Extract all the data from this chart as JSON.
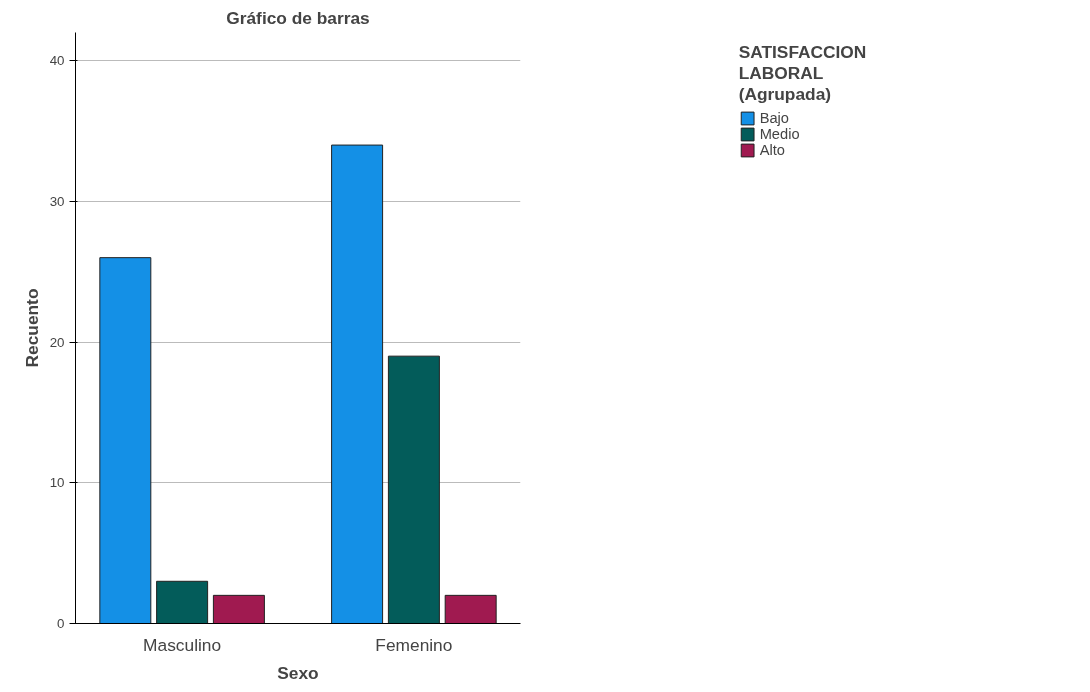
{
  "chart_data": {
    "type": "bar",
    "title": "Gráfico de barras",
    "xlabel": "Sexo",
    "ylabel": "Recuento",
    "legend_title": "SATISFACCION LABORAL (Agrupada)",
    "categories": [
      "Masculino",
      "Femenino"
    ],
    "series": [
      {
        "name": "Bajo",
        "color": "#1490e6",
        "values": [
          26,
          34
        ]
      },
      {
        "name": "Medio",
        "color": "#035c5a",
        "values": [
          3,
          19
        ]
      },
      {
        "name": "Alto",
        "color": "#a01a50",
        "values": [
          2,
          2
        ]
      }
    ],
    "ylim": [
      0,
      42
    ],
    "yticks": [
      0,
      10,
      20,
      30,
      40
    ],
    "grid": "y",
    "legend": "top right"
  }
}
